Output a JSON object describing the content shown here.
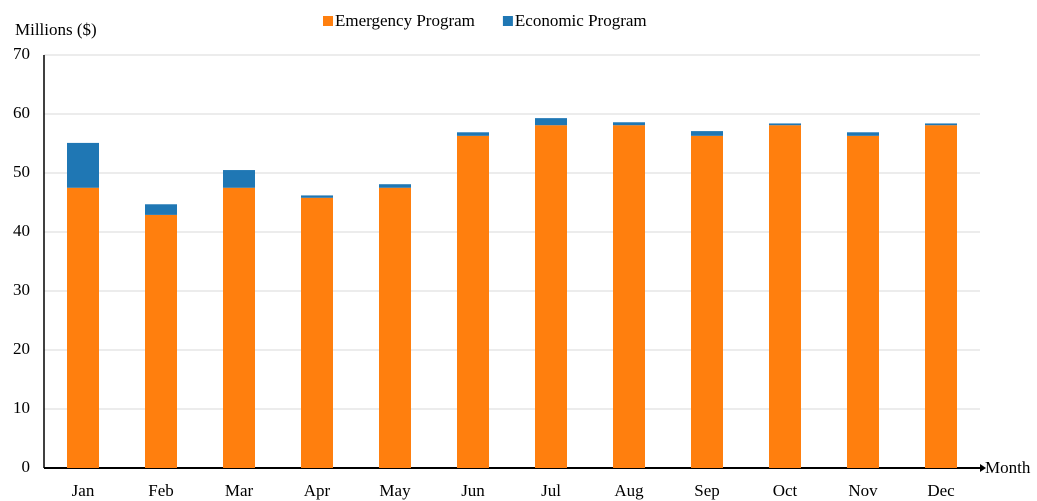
{
  "chart_data": {
    "type": "bar",
    "stacked": true,
    "y_label": "Millions ($)",
    "x_label": "Month",
    "categories": [
      "Jan",
      "Feb",
      "Mar",
      "Apr",
      "May",
      "Jun",
      "Jul",
      "Aug",
      "Sep",
      "Oct",
      "Nov",
      "Dec"
    ],
    "series": [
      {
        "name": "Emergency Program",
        "color": "#ff7f0e",
        "values": [
          47.5,
          42.9,
          47.5,
          45.8,
          47.5,
          56.3,
          58.1,
          58.1,
          56.3,
          58.1,
          56.3,
          58.1
        ]
      },
      {
        "name": "Economic Program",
        "color": "#1f77b4",
        "values": [
          7.6,
          1.8,
          3.0,
          0.4,
          0.6,
          0.6,
          1.2,
          0.5,
          0.8,
          0.3,
          0.6,
          0.3
        ]
      }
    ],
    "ylim": [
      0,
      70
    ],
    "yticks": [
      0,
      10,
      20,
      30,
      40,
      50,
      60,
      70
    ],
    "grid": true,
    "legend": "top"
  }
}
